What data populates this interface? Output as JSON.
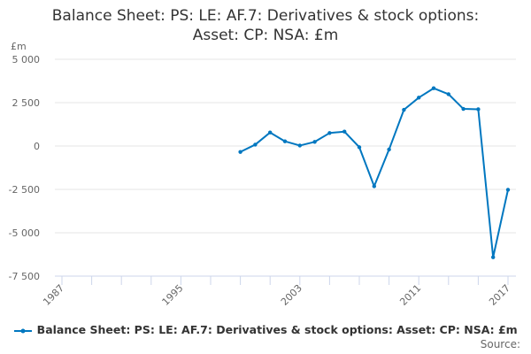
{
  "chart_data": {
    "type": "line",
    "title_line1": "Balance Sheet: PS: LE: AF.7: Derivatives & stock options:",
    "title_line2": "Asset: CP: NSA: £m",
    "ylabel": "£m",
    "xlabel": "",
    "xlim": [
      1987,
      2017
    ],
    "ylim": [
      -7500,
      5000
    ],
    "yticks": [
      5000,
      2500,
      0,
      -2500,
      -5000,
      -7500
    ],
    "ytick_labels": [
      "5 000",
      "2 500",
      "0",
      "-2 500",
      "-5 000",
      "-7 500"
    ],
    "xtick_labels": [
      "1987",
      "1995",
      "2003",
      "2011",
      "2017"
    ],
    "grid": true,
    "legend_position": "bottom",
    "series": [
      {
        "name": "Balance Sheet: PS: LE: AF.7: Derivatives & stock options: Asset: CP: NSA: £m",
        "color": "#0077c0",
        "x": [
          1999,
          2000,
          2001,
          2002,
          2003,
          2004,
          2005,
          2006,
          2007,
          2008,
          2009,
          2010,
          2011,
          2012,
          2013,
          2014,
          2015,
          2016,
          2017
        ],
        "values": [
          -340,
          80,
          780,
          270,
          30,
          240,
          750,
          830,
          -70,
          -2320,
          -200,
          2090,
          2790,
          3330,
          2990,
          2140,
          2120,
          -6410,
          -2520
        ]
      }
    ]
  },
  "source_label": "Source:"
}
